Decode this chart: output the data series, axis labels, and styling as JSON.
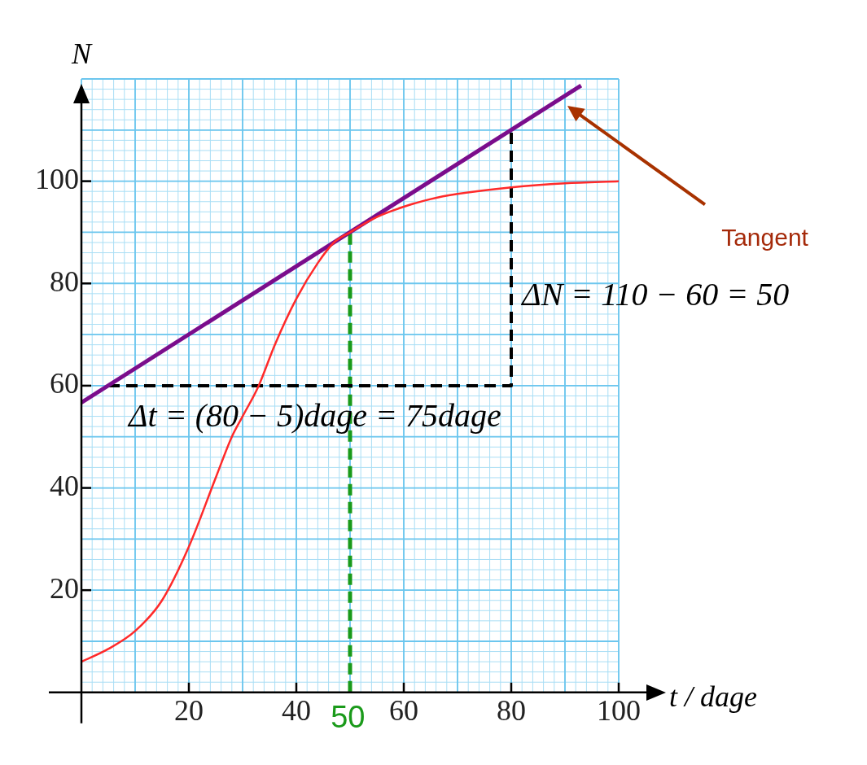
{
  "chart_data": {
    "type": "line",
    "xlabel": "t / dage",
    "ylabel": "N",
    "xlim": [
      0,
      100
    ],
    "ylim": [
      0,
      120
    ],
    "xticks": [
      20,
      40,
      60,
      80,
      100
    ],
    "yticks": [
      20,
      40,
      60,
      80,
      100
    ],
    "grid": true,
    "legend": false,
    "marker": "none",
    "series": [
      {
        "color": "#ff2a2a",
        "x": [
          0,
          5,
          10,
          15,
          20,
          25,
          28,
          30,
          33,
          36,
          40,
          44,
          47,
          50,
          55,
          60,
          65,
          70,
          80,
          90,
          100
        ],
        "values": [
          6,
          8.5,
          12,
          18,
          28.5,
          42,
          50,
          54,
          60,
          68,
          77,
          84,
          88,
          90,
          93,
          95,
          96.5,
          97.5,
          98.8,
          99.6,
          100
        ]
      },
      {
        "color": "#7b0d8c",
        "x": [
          0,
          93
        ],
        "values": [
          56.7,
          118.7
        ]
      },
      {
        "color": "#000000",
        "line_style": "dashed",
        "x": [
          5,
          80,
          80
        ],
        "values": [
          60,
          60,
          110
        ]
      },
      {
        "color": "#1a9a1a",
        "line_style": "dashed",
        "x": [
          50,
          50
        ],
        "values": [
          0,
          90
        ]
      }
    ],
    "annotations": [
      "Δt = (80 − 5)dage = 75dage",
      "ΔN = 110 − 60 = 50",
      "Tangent",
      "50"
    ]
  }
}
